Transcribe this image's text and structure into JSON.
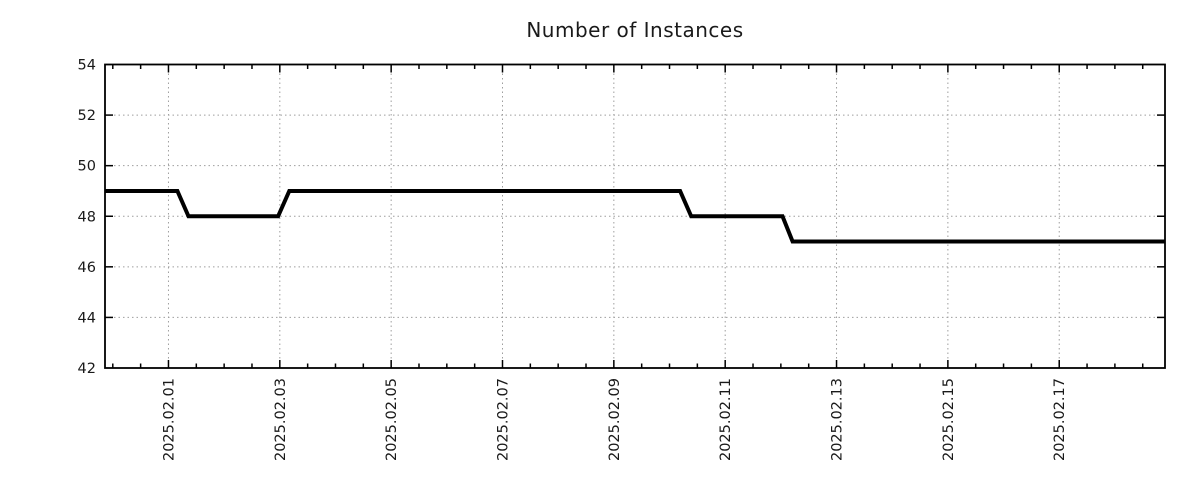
{
  "title": "Number of Instances",
  "colors": {
    "background": "#ffffff",
    "line": "#000000",
    "grid": "#9e9e9e",
    "axis": "#000000",
    "text": "#1a1a1a"
  },
  "chart_data": {
    "type": "line",
    "title": "Number of Instances",
    "xlabel": "",
    "ylabel": "",
    "x_unit": "day of February 2025 (1.0 = 2025.02.01 00:00)",
    "xlim": [
      -0.14,
      18.9
    ],
    "ylim": [
      42,
      54
    ],
    "y_ticks": [
      42,
      44,
      46,
      48,
      50,
      52,
      54
    ],
    "x_major_ticks": [
      1,
      3,
      5,
      7,
      9,
      11,
      13,
      15,
      17
    ],
    "x_tick_labels": [
      "2025.02.01",
      "2025.02.03",
      "2025.02.05",
      "2025.02.07",
      "2025.02.09",
      "2025.02.11",
      "2025.02.13",
      "2025.02.15",
      "2025.02.17"
    ],
    "x_minor_tick_step": 0.5,
    "grid": true,
    "legend": false,
    "series": [
      {
        "name": "instances",
        "color": "#000000",
        "width": 4,
        "points": [
          [
            -0.14,
            49
          ],
          [
            1.16,
            49
          ],
          [
            1.36,
            48
          ],
          [
            2.97,
            48
          ],
          [
            3.17,
            49
          ],
          [
            10.19,
            49
          ],
          [
            10.39,
            48
          ],
          [
            12.03,
            48
          ],
          [
            12.21,
            47
          ],
          [
            18.9,
            47
          ]
        ]
      }
    ]
  }
}
